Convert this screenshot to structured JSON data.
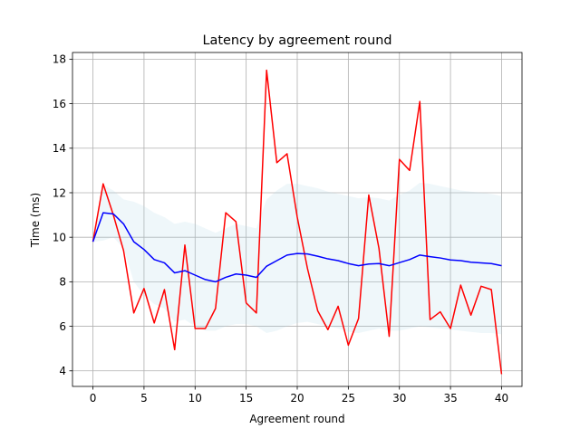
{
  "chart_data": {
    "type": "line",
    "title": "Latency by agreement round",
    "xlabel": "Agreement round",
    "ylabel": "Time (ms)",
    "xlim": [
      -2,
      42
    ],
    "ylim": [
      3.3,
      18.3
    ],
    "xticks": [
      0,
      5,
      10,
      15,
      20,
      25,
      30,
      35,
      40
    ],
    "yticks": [
      4,
      6,
      8,
      10,
      12,
      14,
      16,
      18
    ],
    "grid": true,
    "x": [
      0,
      1,
      2,
      3,
      4,
      5,
      6,
      7,
      8,
      9,
      10,
      11,
      12,
      13,
      14,
      15,
      16,
      17,
      18,
      19,
      20,
      21,
      22,
      23,
      24,
      25,
      26,
      27,
      28,
      29,
      30,
      31,
      32,
      33,
      34,
      35,
      36,
      37,
      38,
      39,
      40
    ],
    "series": [
      {
        "color": "#ff0000",
        "values": [
          9.8,
          12.4,
          11.0,
          9.4,
          6.6,
          7.7,
          6.15,
          7.65,
          4.95,
          9.65,
          5.9,
          5.9,
          6.8,
          11.1,
          10.7,
          7.05,
          6.6,
          17.5,
          13.35,
          13.75,
          10.9,
          8.6,
          6.7,
          5.85,
          6.9,
          5.15,
          6.35,
          11.9,
          9.5,
          5.55,
          13.5,
          13.0,
          16.1,
          6.3,
          6.65,
          5.9,
          7.85,
          6.5,
          7.8,
          7.65,
          3.85
        ]
      },
      {
        "color": "#0000ff",
        "values": [
          9.8,
          11.1,
          11.05,
          10.6,
          9.8,
          9.45,
          9.0,
          8.85,
          8.4,
          8.5,
          8.3,
          8.1,
          8.0,
          8.2,
          8.35,
          8.3,
          8.2,
          8.7,
          8.95,
          9.2,
          9.27,
          9.25,
          9.15,
          9.03,
          8.95,
          8.82,
          8.72,
          8.8,
          8.82,
          8.72,
          8.86,
          9.0,
          9.2,
          9.13,
          9.07,
          8.98,
          8.95,
          8.88,
          8.85,
          8.82,
          8.72
        ]
      }
    ],
    "band": {
      "color": "#add8e6",
      "opacity": 0.2,
      "lower": [
        9.8,
        9.85,
        10.0,
        9.5,
        8.0,
        7.4,
        7.0,
        6.8,
        6.2,
        6.3,
        6.0,
        5.8,
        5.8,
        6.0,
        6.1,
        6.1,
        6.0,
        5.7,
        5.8,
        6.0,
        6.15,
        6.2,
        6.1,
        6.0,
        5.9,
        5.75,
        5.7,
        5.8,
        5.9,
        5.8,
        5.8,
        5.9,
        6.0,
        5.95,
        5.9,
        5.85,
        5.8,
        5.75,
        5.7,
        5.7,
        5.65
      ],
      "upper": [
        9.8,
        12.35,
        12.1,
        11.7,
        11.6,
        11.4,
        11.1,
        10.9,
        10.6,
        10.7,
        10.6,
        10.4,
        10.2,
        10.4,
        10.6,
        10.5,
        10.4,
        11.7,
        12.1,
        12.4,
        12.4,
        12.3,
        12.2,
        12.05,
        11.95,
        11.85,
        11.75,
        11.8,
        11.75,
        11.65,
        11.9,
        12.1,
        12.45,
        12.4,
        12.3,
        12.2,
        12.1,
        12.05,
        12.0,
        11.95,
        11.85
      ]
    }
  }
}
